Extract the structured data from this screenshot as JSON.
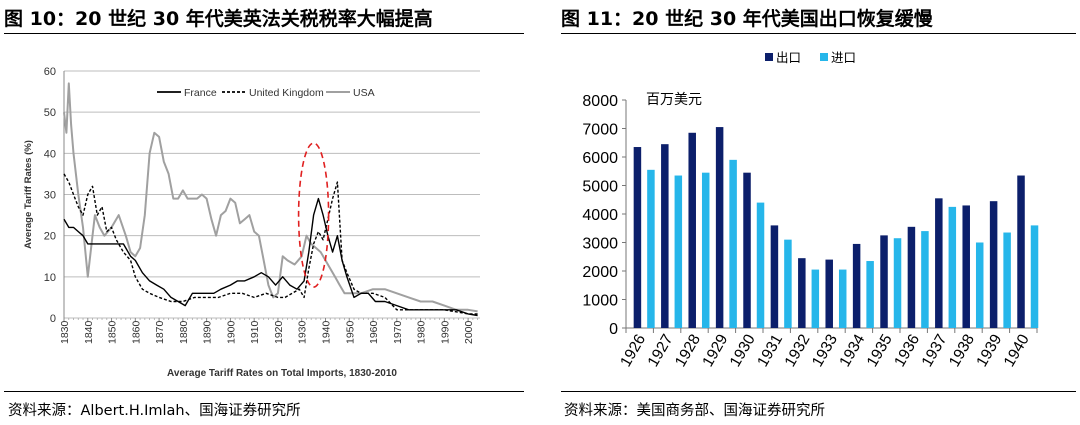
{
  "figures": [
    {
      "title": "图 10：20 世纪 30 年代美英法关税税率大幅提高",
      "source": "资料来源：Albert.H.Imlah、国海证券研究所"
    },
    {
      "title": "图 11：20 世纪 30 年代美国出口恢复缓慢",
      "source": "资料来源：美国商务部、国海证券研究所"
    }
  ],
  "chart_data": [
    {
      "type": "line",
      "title": "",
      "xlabel": "Average Tariff Rates on Total Imports, 1830-2010",
      "ylabel": "Average Tariff Rates (%)",
      "xlim": [
        1830,
        2005
      ],
      "ylim": [
        0,
        60
      ],
      "xticks": [
        1830,
        1840,
        1850,
        1860,
        1870,
        1880,
        1890,
        1900,
        1910,
        1920,
        1930,
        1940,
        1950,
        1960,
        1970,
        1980,
        1990,
        2000
      ],
      "yticks": [
        0,
        10,
        20,
        30,
        40,
        50,
        60
      ],
      "grid": true,
      "legend": "top",
      "series": [
        {
          "name": "France",
          "color": "#000000",
          "style": "solid",
          "x": [
            1830,
            1832,
            1834,
            1836,
            1838,
            1840,
            1843,
            1846,
            1849,
            1852,
            1855,
            1858,
            1860,
            1863,
            1866,
            1869,
            1872,
            1875,
            1878,
            1881,
            1884,
            1887,
            1890,
            1893,
            1896,
            1900,
            1903,
            1906,
            1910,
            1913,
            1916,
            1919,
            1922,
            1925,
            1928,
            1931,
            1933,
            1935,
            1937,
            1939,
            1941,
            1943,
            1945,
            1947,
            1949,
            1952,
            1955,
            1958,
            1961,
            1965,
            1970,
            1975,
            1980,
            1985,
            1990,
            1995,
            2000,
            2004
          ],
          "y": [
            24,
            22,
            22,
            21,
            20,
            18,
            18,
            18,
            18,
            18,
            18,
            15,
            14,
            11,
            9,
            8,
            7,
            5,
            4,
            3,
            6,
            6,
            6,
            6,
            7,
            8,
            9,
            9,
            10,
            11,
            10,
            8,
            10,
            8,
            7,
            9,
            16,
            25,
            29,
            25,
            20,
            16,
            20,
            14,
            10,
            5,
            6,
            6,
            4,
            4,
            3,
            2,
            2,
            2,
            2,
            2,
            1,
            0.6
          ]
        },
        {
          "name": "United Kingdom",
          "color": "#000000",
          "style": "dashed",
          "x": [
            1830,
            1832,
            1834,
            1836,
            1838,
            1840,
            1842,
            1844,
            1846,
            1848,
            1850,
            1852,
            1855,
            1858,
            1860,
            1863,
            1866,
            1870,
            1875,
            1880,
            1885,
            1890,
            1895,
            1900,
            1905,
            1910,
            1915,
            1920,
            1923,
            1926,
            1929,
            1931,
            1933,
            1935,
            1937,
            1939,
            1941,
            1943,
            1945,
            1947,
            1949,
            1952,
            1955,
            1960,
            1965,
            1970,
            1975,
            1980,
            1990,
            2000,
            2004
          ],
          "y": [
            35,
            33,
            30,
            27,
            25,
            30,
            32,
            25,
            27,
            21,
            22,
            19,
            16,
            14,
            10,
            7,
            6,
            5,
            4,
            4,
            5,
            5,
            5,
            6,
            6,
            5,
            6,
            5,
            5,
            6,
            7,
            5,
            12,
            18,
            21,
            19,
            24,
            29,
            33,
            14,
            11,
            7,
            6,
            6,
            5,
            2,
            2,
            2,
            2,
            1,
            1
          ]
        },
        {
          "name": "USA",
          "color": "#a0a0a0",
          "style": "solid",
          "x": [
            1830,
            1831,
            1832,
            1833,
            1834,
            1836,
            1838,
            1840,
            1842,
            1843,
            1845,
            1847,
            1850,
            1853,
            1856,
            1858,
            1860,
            1862,
            1864,
            1866,
            1868,
            1870,
            1872,
            1874,
            1876,
            1878,
            1880,
            1882,
            1884,
            1886,
            1888,
            1890,
            1892,
            1894,
            1896,
            1898,
            1900,
            1902,
            1904,
            1906,
            1908,
            1910,
            1912,
            1914,
            1916,
            1918,
            1920,
            1922,
            1924,
            1927,
            1930,
            1932,
            1934,
            1936,
            1938,
            1940,
            1944,
            1946,
            1948,
            1950,
            1955,
            1960,
            1965,
            1970,
            1975,
            1980,
            1985,
            1990,
            1995,
            2000,
            2004
          ],
          "y": [
            50,
            45,
            57,
            47,
            40,
            30,
            22,
            10,
            20,
            25,
            22,
            20,
            22,
            25,
            20,
            16,
            15,
            17,
            25,
            40,
            45,
            44,
            38,
            35,
            29,
            29,
            31,
            29,
            29,
            29,
            30,
            29,
            24,
            20,
            25,
            26,
            29,
            28,
            23,
            24,
            25,
            21,
            20,
            14,
            8,
            5,
            6,
            15,
            14,
            13,
            15,
            20,
            18,
            17,
            16,
            14,
            10,
            8,
            6,
            6,
            6,
            7,
            7,
            6,
            5,
            4,
            4,
            3,
            2,
            2,
            1.6
          ]
        }
      ]
    },
    {
      "type": "bar",
      "title": "",
      "annotation": "百万美元",
      "xlabel": "",
      "ylabel": "",
      "ylim": [
        0,
        8000
      ],
      "yticks": [
        0,
        1000,
        2000,
        3000,
        4000,
        5000,
        6000,
        7000,
        8000
      ],
      "grid": false,
      "legend": "top",
      "categories": [
        "1926",
        "1927",
        "1928",
        "1929",
        "1930",
        "1931",
        "1932",
        "1933",
        "1934",
        "1935",
        "1936",
        "1937",
        "1938",
        "1939",
        "1940"
      ],
      "series": [
        {
          "name": "出口",
          "color": "#0c1f6b",
          "values": [
            6350,
            6450,
            6850,
            7050,
            5450,
            3600,
            2450,
            2400,
            2950,
            3250,
            3550,
            4550,
            4300,
            4450,
            5350
          ]
        },
        {
          "name": "进口",
          "color": "#26b6ea",
          "values": [
            5550,
            5350,
            5450,
            5900,
            4400,
            3100,
            2050,
            2050,
            2350,
            3150,
            3400,
            4250,
            3000,
            3350,
            3600
          ]
        }
      ]
    }
  ]
}
